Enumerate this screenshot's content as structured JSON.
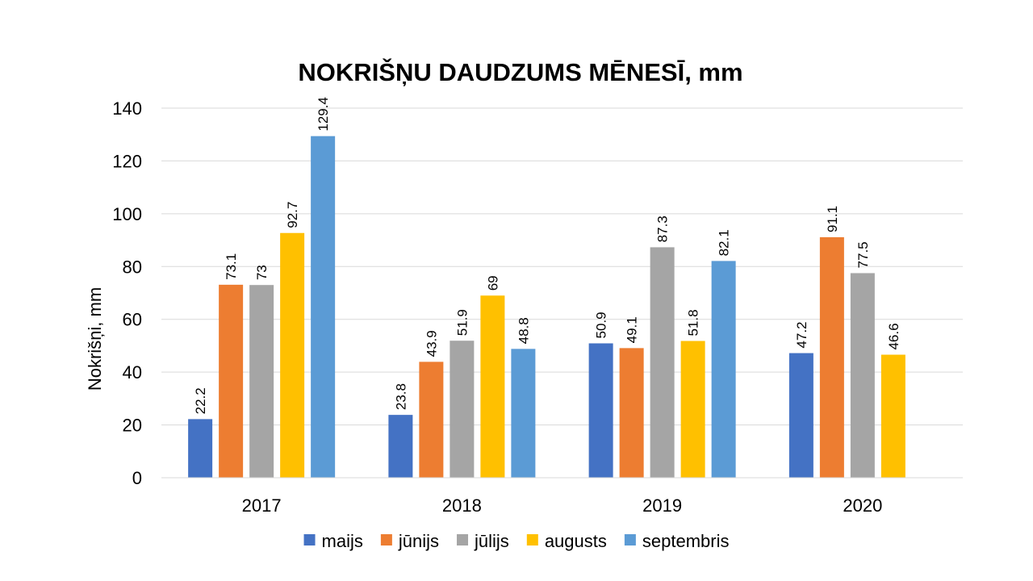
{
  "chart_data": {
    "type": "bar",
    "title": "NOKRIŠŅU DAUDZUMS MĒNESĪ, mm",
    "xlabel": "",
    "ylabel": "Nokrišņi, mm",
    "ylim": [
      0,
      140
    ],
    "yticks": [
      0,
      20,
      40,
      60,
      80,
      100,
      120,
      140
    ],
    "grid": true,
    "legend_position": "bottom",
    "categories": [
      "2017",
      "2018",
      "2019",
      "2020"
    ],
    "series": [
      {
        "name": "maijs",
        "color": "#4472C4",
        "values": [
          22.2,
          23.8,
          50.9,
          47.2
        ],
        "labels": [
          "22.2",
          "23.8",
          "50.9",
          "47.2"
        ]
      },
      {
        "name": "jūnijs",
        "color": "#ED7D31",
        "values": [
          73.1,
          43.9,
          49.1,
          91.1
        ],
        "labels": [
          "73.1",
          "43.9",
          "49.1",
          "91.1"
        ]
      },
      {
        "name": "jūlijs",
        "color": "#A5A5A5",
        "values": [
          73,
          51.9,
          87.3,
          77.5
        ],
        "labels": [
          "73",
          "51.9",
          "87.3",
          "77.5"
        ]
      },
      {
        "name": "augusts",
        "color": "#FFC000",
        "values": [
          92.7,
          69,
          51.8,
          46.6
        ],
        "labels": [
          "92.7",
          "69",
          "51.8",
          "46.6"
        ]
      },
      {
        "name": "septembris",
        "color": "#5B9BD5",
        "values": [
          129.4,
          48.8,
          82.1,
          null
        ],
        "labels": [
          "129.4",
          "48.8",
          "82.1",
          null
        ]
      }
    ]
  }
}
